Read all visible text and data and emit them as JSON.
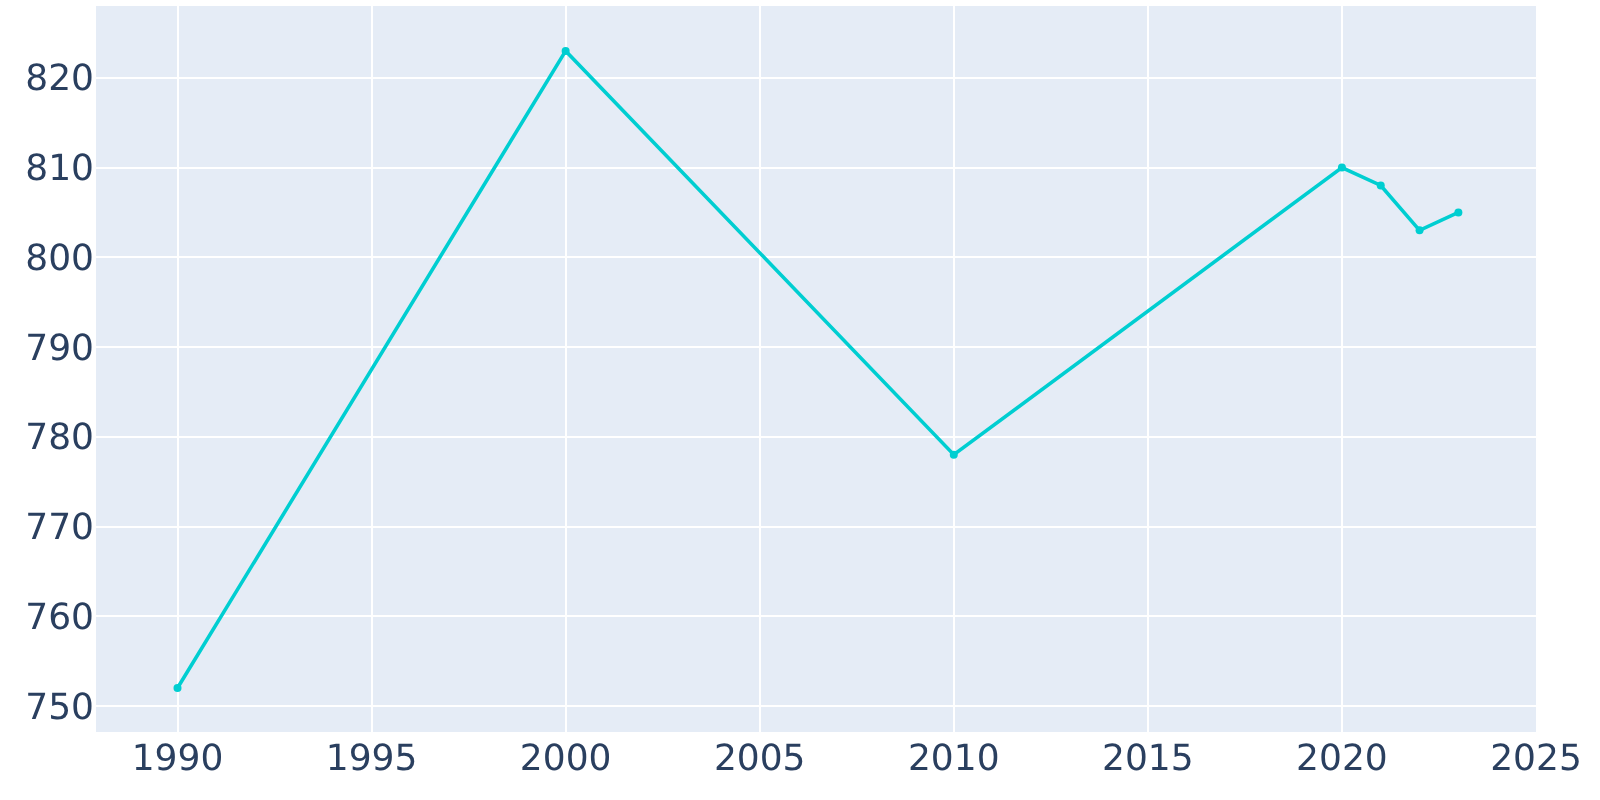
{
  "chart_data": {
    "type": "line",
    "x": [
      1990,
      2000,
      2010,
      2020,
      2021,
      2022,
      2023
    ],
    "series": [
      {
        "color": "#00ced1",
        "values": [
          752,
          823,
          778,
          810,
          808,
          803,
          805
        ]
      }
    ],
    "xlim": [
      1987.9,
      2025
    ],
    "xticks": [
      1990,
      1995,
      2000,
      2005,
      2010,
      2015,
      2020,
      2025
    ],
    "ylim": [
      747.1,
      828
    ],
    "yticks": [
      750,
      760,
      770,
      780,
      790,
      800,
      810,
      820
    ],
    "grid": true,
    "marker": "circle",
    "line_style": "solid"
  }
}
